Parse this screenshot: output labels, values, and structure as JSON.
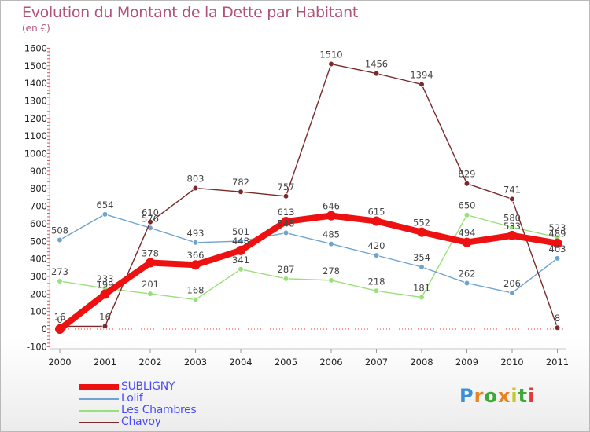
{
  "title": "Evolution du Montant de la Dette par Habitant",
  "unit_label": "(en €)",
  "logo": {
    "text": "Proxiti",
    "letters": [
      "P",
      "r",
      "o",
      "x",
      "i",
      "t",
      "i"
    ],
    "colors": [
      "#3a8fd6",
      "#e8831f",
      "#3fa83a",
      "#e8831f",
      "#c8c82a",
      "#3fa83a",
      "#e03c3c"
    ]
  },
  "chart_data": {
    "type": "line",
    "title": "Evolution du Montant de la Dette par Habitant",
    "ylabel": "(en €)",
    "xlabel": "",
    "ylim": [
      -100,
      1600
    ],
    "y_ticks": [
      -100,
      0,
      100,
      200,
      300,
      400,
      500,
      600,
      700,
      800,
      900,
      1000,
      1100,
      1200,
      1300,
      1400,
      1500,
      1600
    ],
    "categories": [
      "2000",
      "2001",
      "2002",
      "2003",
      "2004",
      "2005",
      "2006",
      "2007",
      "2008",
      "2009",
      "2010",
      "2011"
    ],
    "grid": false,
    "legend_position": "bottom-left",
    "series": [
      {
        "name": "Les Chambres",
        "color": "#99e07a",
        "values": [
          273,
          233,
          201,
          168,
          341,
          287,
          278,
          218,
          181,
          650,
          580,
          523
        ]
      },
      {
        "name": "Lolif",
        "color": "#6fa3cf",
        "values": [
          508,
          654,
          576,
          493,
          501,
          548,
          485,
          420,
          354,
          262,
          206,
          403
        ]
      },
      {
        "name": "Chavoy",
        "color": "#7a2a2a",
        "values": [
          16,
          16,
          610,
          803,
          782,
          757,
          1510,
          1456,
          1394,
          829,
          741,
          8
        ]
      },
      {
        "name": "SUBLIGNY",
        "color": "#ee1111",
        "values": [
          0,
          199,
          378,
          366,
          448,
          613,
          646,
          615,
          552,
          494,
          533,
          489
        ]
      }
    ],
    "legend_order": [
      "SUBLIGNY",
      "Lolif",
      "Les Chambres",
      "Chavoy"
    ]
  }
}
